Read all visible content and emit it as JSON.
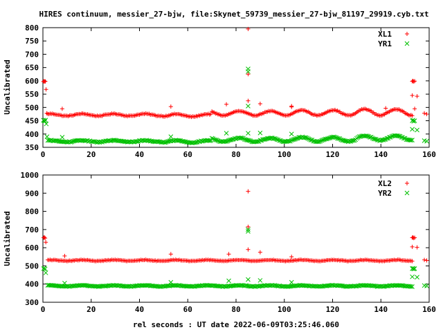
{
  "title": "HIRES continuum, messier_27-bjw, file:Skynet_59739_messier_27-bjw_81197_29919.cyb.txt",
  "colors": {
    "red": "#ff0000",
    "green": "#00c000",
    "axis": "#000000"
  },
  "chart_data": [
    {
      "type": "scatter",
      "ylabel": "Uncalibrated",
      "xlabel": "",
      "xlim": [
        0,
        160
      ],
      "ylim": [
        350,
        800
      ],
      "x_ticks": [
        0,
        20,
        40,
        60,
        80,
        100,
        120,
        140,
        160
      ],
      "y_ticks": [
        350,
        400,
        450,
        500,
        550,
        600,
        650,
        700,
        750,
        800
      ],
      "legend_position": "top-right",
      "series": [
        {
          "name": "XL1",
          "marker": "plus",
          "color": "#ff0000",
          "baseline": {
            "x_range": [
              2,
              153
            ],
            "step": 0.5,
            "mean": 475,
            "wave_amp": 8,
            "wave_period": 13
          },
          "segments": [
            {
              "x_range": [
                2,
                50
              ],
              "mean": 472,
              "amp": 4
            },
            {
              "x_range": [
                50,
                70
              ],
              "mean": 470,
              "amp": 5
            },
            {
              "x_range": [
                70,
                100
              ],
              "mean": 478,
              "amp": 8
            },
            {
              "x_range": [
                100,
                130
              ],
              "mean": 480,
              "amp": 10
            },
            {
              "x_range": [
                130,
                153
              ],
              "mean": 482,
              "amp": 12
            }
          ],
          "points": [
            [
              0.2,
              597
            ],
            [
              0.5,
              599
            ],
            [
              0.8,
              597
            ],
            [
              1.0,
              598
            ],
            [
              1.3,
              568
            ],
            [
              1.6,
              478
            ],
            [
              8,
              495
            ],
            [
              53,
              503
            ],
            [
              76,
              512
            ],
            [
              85,
              795
            ],
            [
              85,
              625
            ],
            [
              85,
              525
            ],
            [
              90,
              514
            ],
            [
              103,
              505
            ],
            [
              103,
              502
            ],
            [
              142,
              497
            ],
            [
              153,
              598
            ],
            [
              153.3,
              600
            ],
            [
              153.6,
              597
            ],
            [
              154,
              599
            ],
            [
              153,
              545
            ],
            [
              155,
              542
            ],
            [
              154,
              495
            ],
            [
              158,
              478
            ],
            [
              159,
              475
            ]
          ]
        },
        {
          "name": "YR1",
          "marker": "cross",
          "color": "#00c000",
          "baseline": {
            "x_range": [
              2,
              153
            ],
            "step": 0.5,
            "mean": 375,
            "wave_amp": 6,
            "wave_period": 13
          },
          "segments": [
            {
              "x_range": [
                2,
                50
              ],
              "mean": 373,
              "amp": 3
            },
            {
              "x_range": [
                50,
                70
              ],
              "mean": 372,
              "amp": 4
            },
            {
              "x_range": [
                70,
                100
              ],
              "mean": 378,
              "amp": 7
            },
            {
              "x_range": [
                100,
                130
              ],
              "mean": 380,
              "amp": 8
            },
            {
              "x_range": [
                130,
                153
              ],
              "mean": 385,
              "amp": 9
            }
          ],
          "points": [
            [
              0.2,
              452
            ],
            [
              0.5,
              450
            ],
            [
              0.8,
              448
            ],
            [
              1.1,
              452
            ],
            [
              1.4,
              438
            ],
            [
              1.7,
              390
            ],
            [
              8,
              388
            ],
            [
              53,
              390
            ],
            [
              76,
              403
            ],
            [
              85,
              645
            ],
            [
              85,
              635
            ],
            [
              85,
              505
            ],
            [
              85,
              403
            ],
            [
              90,
              404
            ],
            [
              103,
              400
            ],
            [
              153,
              450
            ],
            [
              153.3,
              452
            ],
            [
              153.6,
              448
            ],
            [
              154,
              450
            ],
            [
              153,
              418
            ],
            [
              155,
              415
            ],
            [
              158,
              375
            ],
            [
              159,
              373
            ]
          ]
        }
      ]
    },
    {
      "type": "scatter",
      "ylabel": "Uncalibrated",
      "xlabel": "rel seconds : UT date 2022-06-09T03:25:46.060",
      "xlim": [
        0,
        160
      ],
      "ylim": [
        300,
        1000
      ],
      "x_ticks": [
        0,
        20,
        40,
        60,
        80,
        100,
        120,
        140,
        160
      ],
      "y_ticks": [
        300,
        400,
        500,
        600,
        700,
        800,
        900,
        1000
      ],
      "legend_position": "top-right",
      "series": [
        {
          "name": "XL2",
          "marker": "plus",
          "color": "#ff0000",
          "baseline": {
            "x_range": [
              2,
              153
            ],
            "step": 0.5,
            "mean": 530,
            "wave_amp": 3,
            "wave_period": 13
          },
          "segments": [
            {
              "x_range": [
                2,
                153
              ],
              "mean": 530,
              "amp": 3
            }
          ],
          "points": [
            [
              0.3,
              655
            ],
            [
              0.6,
              657
            ],
            [
              0.9,
              653
            ],
            [
              1.2,
              630
            ],
            [
              9,
              555
            ],
            [
              53,
              565
            ],
            [
              77,
              565
            ],
            [
              85,
              910
            ],
            [
              85,
              715
            ],
            [
              85,
              590
            ],
            [
              90,
              575
            ],
            [
              103,
              550
            ],
            [
              153,
              655
            ],
            [
              153.3,
              657
            ],
            [
              153.6,
              653
            ],
            [
              154,
              655
            ],
            [
              153,
              605
            ],
            [
              155,
              602
            ],
            [
              158,
              533
            ],
            [
              159,
              530
            ]
          ]
        },
        {
          "name": "YR2",
          "marker": "cross",
          "color": "#00c000",
          "baseline": {
            "x_range": [
              2,
              153
            ],
            "step": 0.5,
            "mean": 390,
            "wave_amp": 3,
            "wave_period": 13
          },
          "segments": [
            {
              "x_range": [
                2,
                153
              ],
              "mean": 390,
              "amp": 3
            }
          ],
          "points": [
            [
              0.3,
              485
            ],
            [
              0.6,
              488
            ],
            [
              0.9,
              483
            ],
            [
              1.2,
              462
            ],
            [
              9,
              405
            ],
            [
              53,
              410
            ],
            [
              77,
              418
            ],
            [
              85,
              700
            ],
            [
              85,
              690
            ],
            [
              85,
              425
            ],
            [
              90,
              420
            ],
            [
              103,
              410
            ],
            [
              153,
              485
            ],
            [
              153.3,
              487
            ],
            [
              153.6,
              483
            ],
            [
              154,
              485
            ],
            [
              153,
              440
            ],
            [
              155,
              438
            ],
            [
              158,
              392
            ],
            [
              159,
              390
            ]
          ]
        }
      ]
    }
  ]
}
